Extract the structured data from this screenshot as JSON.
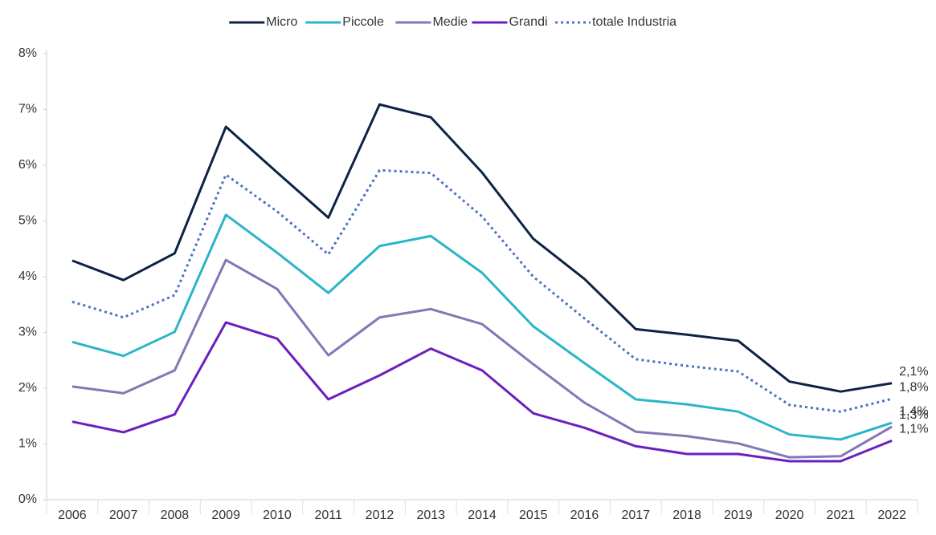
{
  "chart_data": {
    "type": "line",
    "categories": [
      "2006",
      "2007",
      "2008",
      "2009",
      "2010",
      "2011",
      "2012",
      "2013",
      "2014",
      "2015",
      "2016",
      "2017",
      "2018",
      "2019",
      "2020",
      "2021",
      "2022"
    ],
    "series": [
      {
        "name": "Micro",
        "color": "#0d2346",
        "dash": "solid",
        "values": [
          4.29,
          3.94,
          4.42,
          6.69,
          5.87,
          5.06,
          7.09,
          6.86,
          5.87,
          4.68,
          3.96,
          3.06,
          2.96,
          2.85,
          2.12,
          1.94,
          2.09
        ],
        "value_labels": [
          null,
          null,
          null,
          null,
          null,
          null,
          null,
          null,
          null,
          null,
          null,
          null,
          null,
          null,
          null,
          null,
          "2,1%"
        ]
      },
      {
        "name": "Piccole",
        "color": "#2bb5c8",
        "dash": "solid",
        "values": [
          2.83,
          2.58,
          3.01,
          5.11,
          4.43,
          3.71,
          4.55,
          4.73,
          4.07,
          3.11,
          2.45,
          1.8,
          1.71,
          1.58,
          1.17,
          1.08,
          1.38
        ],
        "value_labels": [
          null,
          null,
          null,
          null,
          null,
          null,
          null,
          null,
          null,
          null,
          null,
          null,
          null,
          null,
          null,
          null,
          "1,4%"
        ]
      },
      {
        "name": "Medie",
        "color": "#8178b5",
        "dash": "solid",
        "values": [
          2.03,
          1.91,
          2.32,
          4.3,
          3.78,
          2.59,
          3.27,
          3.42,
          3.15,
          2.43,
          1.74,
          1.22,
          1.14,
          1.01,
          0.76,
          0.78,
          1.31
        ],
        "value_labels": [
          null,
          null,
          null,
          null,
          null,
          null,
          null,
          null,
          null,
          null,
          null,
          null,
          null,
          null,
          null,
          null,
          "1,3%"
        ]
      },
      {
        "name": "Grandi",
        "color": "#6b1fc0",
        "dash": "solid",
        "values": [
          1.4,
          1.21,
          1.53,
          3.18,
          2.89,
          1.8,
          2.23,
          2.71,
          2.32,
          1.55,
          1.29,
          0.96,
          0.82,
          0.82,
          0.69,
          0.69,
          1.06
        ],
        "value_labels": [
          null,
          null,
          null,
          null,
          null,
          null,
          null,
          null,
          null,
          null,
          null,
          null,
          null,
          null,
          null,
          null,
          "1,1%"
        ]
      },
      {
        "name": "totale Industria",
        "color": "#4a72c0",
        "dash": "dotted",
        "values": [
          3.55,
          3.27,
          3.67,
          5.83,
          5.17,
          4.4,
          5.91,
          5.86,
          5.08,
          4.0,
          3.25,
          2.52,
          2.4,
          2.3,
          1.7,
          1.58,
          1.81
        ],
        "value_labels": [
          null,
          null,
          null,
          null,
          null,
          null,
          null,
          null,
          null,
          null,
          null,
          null,
          null,
          null,
          null,
          null,
          "1,8%"
        ]
      }
    ],
    "ylim": [
      0,
      8
    ],
    "yticks": [
      {
        "value": 0,
        "label": "0%"
      },
      {
        "value": 1,
        "label": "1%"
      },
      {
        "value": 2,
        "label": "2%"
      },
      {
        "value": 3,
        "label": "3%"
      },
      {
        "value": 4,
        "label": "4%"
      },
      {
        "value": 5,
        "label": "5%"
      },
      {
        "value": 6,
        "label": "6%"
      },
      {
        "value": 7,
        "label": "7%"
      },
      {
        "value": 8,
        "label": "8%"
      }
    ],
    "grid": false,
    "legend": "top"
  }
}
